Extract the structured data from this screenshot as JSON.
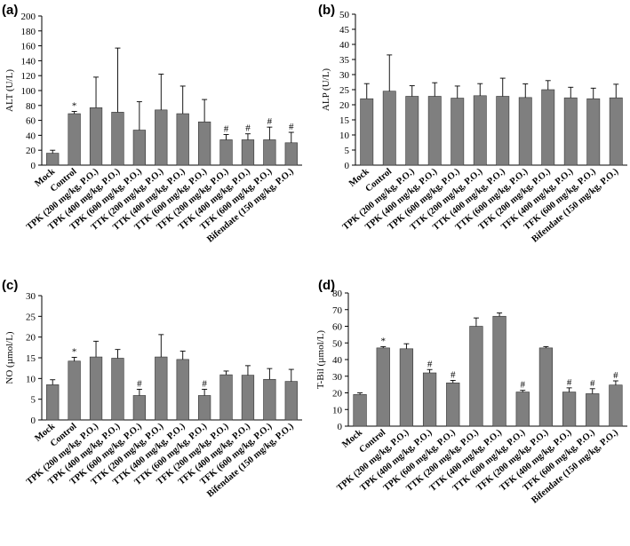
{
  "colors": {
    "bar": "#7f7f7f",
    "axis": "#000000",
    "background": "#ffffff"
  },
  "chart_data": [
    {
      "panel": "(a)",
      "type": "bar",
      "ylabel": "ALT (U/L)",
      "ylim": [
        0,
        200
      ],
      "yticks": [
        "0",
        "20",
        "40",
        "60",
        "80",
        "100",
        "120",
        "140",
        "160",
        "180",
        "200"
      ],
      "categories": [
        "Mock",
        "Control",
        "TPK (200 mg/kg, P.O.)",
        "TPK (400 mg/kg, P.O.)",
        "TPK (600 mg/kg, P.O.)",
        "TTK (200 mg/kg, P.O.)",
        "TTK (400 mg/kg, P.O.)",
        "TTK (600 mg/kg, P.O.)",
        "TFK (200 mg/kg, P.O.)",
        "TFK (400 mg/kg, P.O.)",
        "TFK (600 mg/kg, P.O.)",
        "Bifendate (150 mg/kg, P.O.)"
      ],
      "values": [
        16,
        69,
        77,
        71,
        47,
        74,
        69,
        58,
        34,
        34,
        34,
        30
      ],
      "errors": [
        4,
        3,
        41,
        86,
        38,
        48,
        37,
        30,
        7,
        8,
        17,
        14
      ],
      "marks": [
        "",
        "*",
        "",
        "",
        "",
        "",
        "",
        "",
        "#",
        "#",
        "#",
        "#"
      ]
    },
    {
      "panel": "(b)",
      "type": "bar",
      "ylabel": "ALP (U/L)",
      "ylim": [
        0,
        50
      ],
      "yticks": [
        "0",
        "5",
        "10",
        "15",
        "20",
        "25",
        "30",
        "35",
        "40",
        "45",
        "50"
      ],
      "categories": [
        "Mock",
        "Control",
        "TPK (200 mg/kg, P.O.)",
        "TPK (400 mg/kg, P.O.)",
        "TPK (600 mg/kg, P.O.)",
        "TTK (200 mg/kg, P.O.)",
        "TTK (400 mg/kg, P.O.)",
        "TTK (600 mg/kg, P.O.)",
        "TFK (200 mg/kg, P.O.)",
        "TFK (400 mg/kg, P.O.)",
        "TFK (600 mg/kg, P.O.)",
        "Bifendate (150 mg/kg, P.O.)"
      ],
      "values": [
        22,
        24.5,
        22.8,
        22.8,
        22.2,
        23,
        22.8,
        22.4,
        25,
        22.3,
        22,
        22.3
      ],
      "errors": [
        5,
        12,
        3.5,
        4.5,
        4,
        4,
        6,
        4.5,
        3,
        3.5,
        3.5,
        4.5
      ],
      "marks": [
        "",
        "",
        "",
        "",
        "",
        "",
        "",
        "",
        "",
        "",
        "",
        ""
      ]
    },
    {
      "panel": "(c)",
      "type": "bar",
      "ylabel": "NO (µmol/L)",
      "ylim": [
        0,
        30
      ],
      "yticks": [
        "0",
        "5",
        "10",
        "15",
        "20",
        "25",
        "30"
      ],
      "categories": [
        "Mock",
        "Control",
        "TPK (200 mg/kg, P.O.)",
        "TPK (400 mg/kg, P.O.)",
        "TPK (600 mg/kg, P.O.)",
        "TTK (200 mg/kg, P.O.)",
        "TTK (400 mg/kg, P.O.)",
        "TTK (600 mg/kg, P.O.)",
        "TFK (200 mg/kg, P.O.)",
        "TFK (400 mg/kg, P.O.)",
        "TFK (600 mg/kg, P.O.)",
        "Bifendate (150 mg/kg, P.O.)"
      ],
      "values": [
        8.5,
        14.2,
        15.2,
        14.9,
        5.9,
        15.2,
        14.6,
        5.9,
        10.9,
        10.8,
        9.8,
        9.3
      ],
      "errors": [
        1.2,
        0.9,
        3.8,
        2.1,
        1.5,
        5.4,
        2.0,
        1.5,
        0.9,
        2.3,
        2.6,
        2.9
      ],
      "marks": [
        "",
        "*",
        "",
        "",
        "#",
        "",
        "",
        "#",
        "",
        "",
        "",
        ""
      ]
    },
    {
      "panel": "(d)",
      "type": "bar",
      "ylabel": "T-Bil (µmol/L)",
      "ylim": [
        0,
        80
      ],
      "yticks": [
        "0",
        "10",
        "20",
        "30",
        "40",
        "50",
        "60",
        "70",
        "80"
      ],
      "categories": [
        "Mock",
        "Control",
        "TPK (200 mg/kg, P.O.)",
        "TPK (400 mg/kg, P.O.)",
        "TPK (600 mg/kg, P.O.)",
        "TTK (200 mg/kg, P.O.)",
        "TTK (400 mg/kg, P.O.)",
        "TTK (600 mg/kg, P.O.)",
        "TFK (200 mg/kg, P.O.)",
        "TFK (400 mg/kg, P.O.)",
        "TFK (600 mg/kg, P.O.)",
        "Bifendate (150 mg/kg, P.O.)"
      ],
      "values": [
        19,
        47,
        46.5,
        32,
        26,
        60,
        66,
        20.5,
        47,
        20.5,
        19.5,
        24.7
      ],
      "errors": [
        1,
        0.8,
        3,
        2,
        1.5,
        5,
        2,
        1,
        0.8,
        2.5,
        3,
        2.5
      ],
      "marks": [
        "",
        "*",
        "",
        "#",
        "#",
        "",
        "",
        "#",
        "",
        "#",
        "#",
        "#"
      ]
    }
  ]
}
